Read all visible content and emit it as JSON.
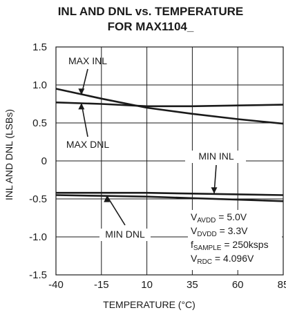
{
  "chart_data": {
    "type": "line",
    "title_lines": [
      "INL AND DNL vs. TEMPERATURE",
      "FOR MAX1104_"
    ],
    "xlabel": "TEMPERATURE (°C)",
    "ylabel": "INL AND DNL (LSBs)",
    "xlim": [
      -40,
      85
    ],
    "ylim": [
      -1.5,
      1.5
    ],
    "x_ticks": [
      -40,
      -15,
      10,
      35,
      60,
      85
    ],
    "x_tick_labels": [
      "-40",
      "-15",
      "10",
      "35",
      "60",
      "85"
    ],
    "y_ticks": [
      1.5,
      1.0,
      0.5,
      0,
      -0.5,
      -1.0,
      -1.5
    ],
    "y_tick_labels": [
      "1.5",
      "1.0",
      "0.5",
      "0",
      "-0.5",
      "-1.0",
      "-1.5"
    ],
    "grid": true,
    "series": [
      {
        "name": "MAX INL",
        "x": [
          -40,
          -15,
          10,
          35,
          60,
          85
        ],
        "y": [
          0.95,
          0.82,
          0.7,
          0.62,
          0.55,
          0.49
        ]
      },
      {
        "name": "MAX DNL",
        "x": [
          -40,
          -15,
          10,
          35,
          60,
          85
        ],
        "y": [
          0.77,
          0.75,
          0.72,
          0.72,
          0.73,
          0.74
        ]
      },
      {
        "name": "MIN INL",
        "x": [
          -40,
          -15,
          10,
          35,
          60,
          85
        ],
        "y": [
          -0.42,
          -0.42,
          -0.42,
          -0.43,
          -0.44,
          -0.45
        ]
      },
      {
        "name": "MIN DNL",
        "x": [
          -40,
          -15,
          10,
          35,
          60,
          85
        ],
        "y": [
          -0.45,
          -0.46,
          -0.47,
          -0.49,
          -0.51,
          -0.53
        ]
      }
    ],
    "annotations": [
      {
        "text": "MAX INL",
        "target": {
          "x": -26,
          "y": 0.87
        }
      },
      {
        "text": "MAX DNL",
        "target": {
          "x": -26,
          "y": 0.76
        }
      },
      {
        "text": "MIN INL",
        "target": {
          "x": 47,
          "y": -0.43
        }
      },
      {
        "text": "MIN DNL",
        "target": {
          "x": -12,
          "y": -0.46
        }
      }
    ],
    "conditions": [
      {
        "main": "V",
        "sub": "AVDD",
        "rest": " = 5.0V"
      },
      {
        "main": "V",
        "sub": "DVDD",
        "rest": " = 3.3V"
      },
      {
        "main": "f",
        "sub": "SAMPLE",
        "rest": " = 250ksps"
      },
      {
        "main": "V",
        "sub": "RDC",
        "rest": " = 4.096V"
      }
    ],
    "colors": {
      "line": "#1a1a1a",
      "grid": "#1a1a1a",
      "background": "#ffffff"
    }
  }
}
